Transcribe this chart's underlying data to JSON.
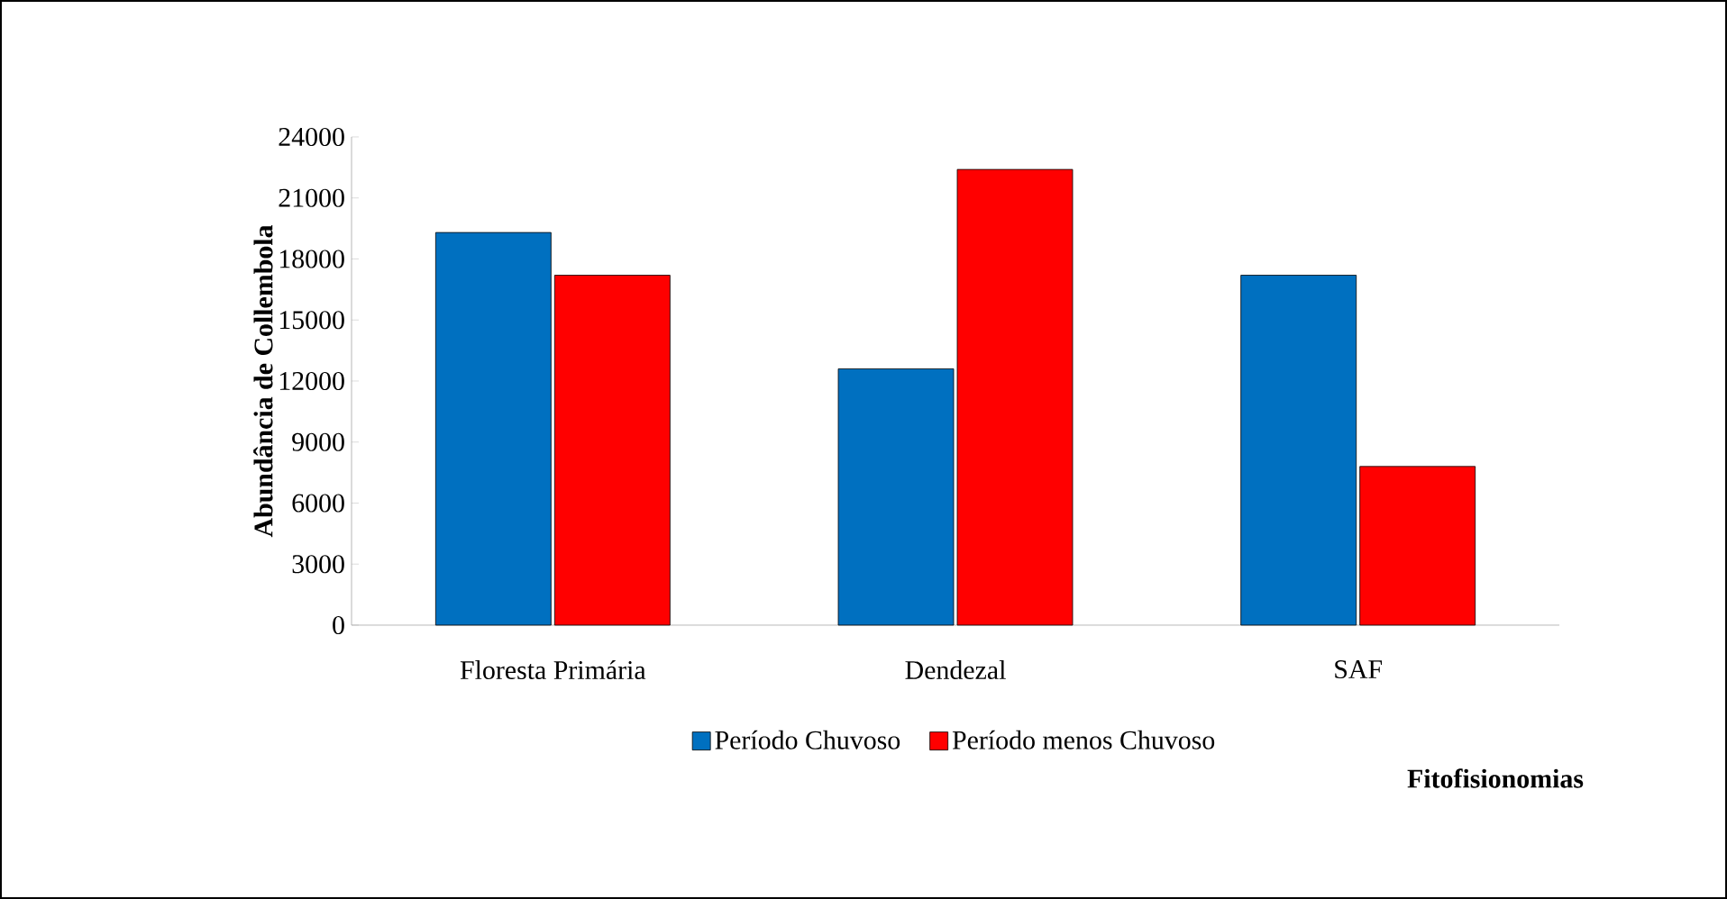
{
  "chart_data": {
    "type": "bar",
    "xlabel": "Fitofisionomias",
    "ylabel": "Abundância de Collembola",
    "categories": [
      "Floresta Primária",
      "Dendezal",
      "SAF"
    ],
    "series": [
      {
        "name": "Período Chuvoso",
        "color": "#0070c0",
        "values": [
          19300,
          12600,
          17200
        ]
      },
      {
        "name": "Período menos Chuvoso",
        "color": "#ff0000",
        "values": [
          17200,
          22400,
          7800
        ]
      }
    ],
    "ylim": [
      0,
      24000
    ],
    "yticks": [
      0,
      3000,
      6000,
      9000,
      12000,
      15000,
      18000,
      21000,
      24000
    ],
    "grid": false,
    "legend": "bottom"
  }
}
